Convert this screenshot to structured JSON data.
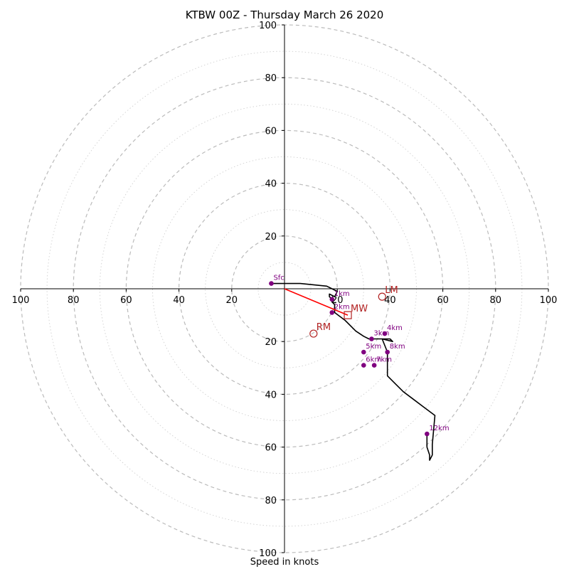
{
  "chart_data": {
    "type": "scatter",
    "subtype": "hodograph",
    "title": "KTBW 00Z - Thursday March 26 2020",
    "xlabel": "Speed in knots",
    "ylabel": "",
    "xlim": [
      -100,
      100
    ],
    "ylim": [
      -100,
      100
    ],
    "ring_major_interval": 20,
    "ring_minor_interval": 10,
    "tick_labels": {
      "x": [
        "100",
        "80",
        "60",
        "40",
        "20",
        "20",
        "40",
        "60",
        "80",
        "100"
      ],
      "y": [
        "100",
        "80",
        "60",
        "40",
        "20",
        "20",
        "40",
        "60",
        "80",
        "100"
      ]
    },
    "grid": true,
    "series": [
      {
        "role": "wind-profile",
        "x": [
          -5,
          -4,
          6,
          16,
          18,
          20,
          19,
          17,
          17,
          18,
          18,
          19,
          19,
          23,
          27,
          30,
          32,
          35,
          38,
          40,
          41,
          37,
          39,
          39,
          39,
          42,
          45,
          49,
          53,
          57,
          56,
          56,
          55,
          55,
          54,
          54
        ],
        "y": [
          2,
          2,
          2,
          1,
          0,
          -1,
          -3,
          -2,
          -3,
          -4,
          -5,
          -6,
          -9,
          -12,
          -16,
          -18,
          -19,
          -19,
          -19,
          -19,
          -20,
          -19,
          -24,
          -27,
          -33,
          -36,
          -39,
          -42,
          -45,
          -48,
          -59,
          -63,
          -65,
          -63,
          -60,
          -55
        ]
      }
    ],
    "height_markers": [
      {
        "label": "Sfc",
        "x": -5,
        "y": 2
      },
      {
        "label": "1km",
        "x": 18,
        "y": -4
      },
      {
        "label": "2km",
        "x": 18,
        "y": -9
      },
      {
        "label": "3km",
        "x": 33,
        "y": -19
      },
      {
        "label": "4km",
        "x": 38,
        "y": -17
      },
      {
        "label": "5km",
        "x": 30,
        "y": -24
      },
      {
        "label": "6km",
        "x": 30,
        "y": -29
      },
      {
        "label": "7km",
        "x": 34,
        "y": -29
      },
      {
        "label": "8km",
        "x": 39,
        "y": -24
      },
      {
        "label": "12km",
        "x": 54,
        "y": -55
      }
    ],
    "storm_motions": [
      {
        "label": "LM",
        "x": 37,
        "y": -3,
        "marker": "circle"
      },
      {
        "label": "MW",
        "x": 24,
        "y": -10,
        "marker": "square"
      },
      {
        "label": "RM",
        "x": 11,
        "y": -17,
        "marker": "circle"
      }
    ],
    "bunkers_vector": {
      "from": [
        0,
        0
      ],
      "to": [
        24,
        -10
      ]
    },
    "colors": {
      "profile": "#000000",
      "markers": "#800080",
      "storm_motion": "#b22222",
      "vector": "#ff0000",
      "grid": "#bbbbbb"
    }
  }
}
